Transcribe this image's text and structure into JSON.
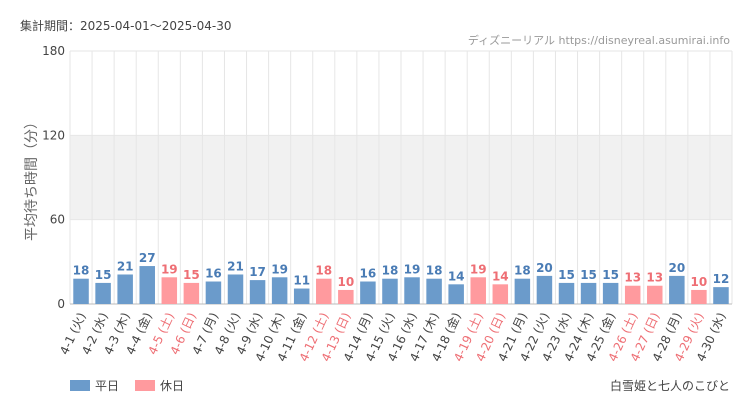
{
  "header": {
    "period": "集計期間：2025-04-01～2025-04-30",
    "credit": "ディズニーリアル https://disneyreal.asumirai.info"
  },
  "footer": {
    "attraction": "白雪姫と七人のこびと"
  },
  "colors": {
    "weekday_bar": "#6b9bcb",
    "holiday_bar": "#ff9a9e",
    "weekday_text": "#4a7cb5",
    "holiday_text": "#ee6e74",
    "band": "#f1f1f1",
    "grid": "#e6e6e6"
  },
  "chart_data": {
    "type": "bar",
    "title": "",
    "ylabel": "平均待ち時間（分）",
    "xlabel": "",
    "ylim": [
      0,
      180
    ],
    "yticks": [
      0,
      60,
      120,
      180
    ],
    "grid": true,
    "legend_position": "bottom-left",
    "categories": [
      "4-1 (火)",
      "4-2 (水)",
      "4-3 (木)",
      "4-4 (金)",
      "4-5 (土)",
      "4-6 (日)",
      "4-7 (月)",
      "4-8 (火)",
      "4-9 (水)",
      "4-10 (木)",
      "4-11 (金)",
      "4-12 (土)",
      "4-13 (日)",
      "4-14 (月)",
      "4-15 (火)",
      "4-16 (水)",
      "4-17 (木)",
      "4-18 (金)",
      "4-19 (土)",
      "4-20 (日)",
      "4-21 (月)",
      "4-22 (火)",
      "4-23 (水)",
      "4-24 (木)",
      "4-25 (金)",
      "4-26 (土)",
      "4-27 (日)",
      "4-28 (月)",
      "4-29 (火)",
      "4-30 (水)"
    ],
    "values": [
      18,
      15,
      21,
      27,
      19,
      15,
      16,
      21,
      17,
      19,
      11,
      18,
      10,
      16,
      18,
      19,
      18,
      14,
      19,
      14,
      18,
      20,
      15,
      15,
      15,
      13,
      13,
      20,
      10,
      12
    ],
    "day_type": [
      "平日",
      "平日",
      "平日",
      "平日",
      "休日",
      "休日",
      "平日",
      "平日",
      "平日",
      "平日",
      "平日",
      "休日",
      "休日",
      "平日",
      "平日",
      "平日",
      "平日",
      "平日",
      "休日",
      "休日",
      "平日",
      "平日",
      "平日",
      "平日",
      "平日",
      "休日",
      "休日",
      "平日",
      "休日",
      "平日"
    ],
    "series": [
      {
        "name": "平日"
      },
      {
        "name": "休日"
      }
    ]
  }
}
